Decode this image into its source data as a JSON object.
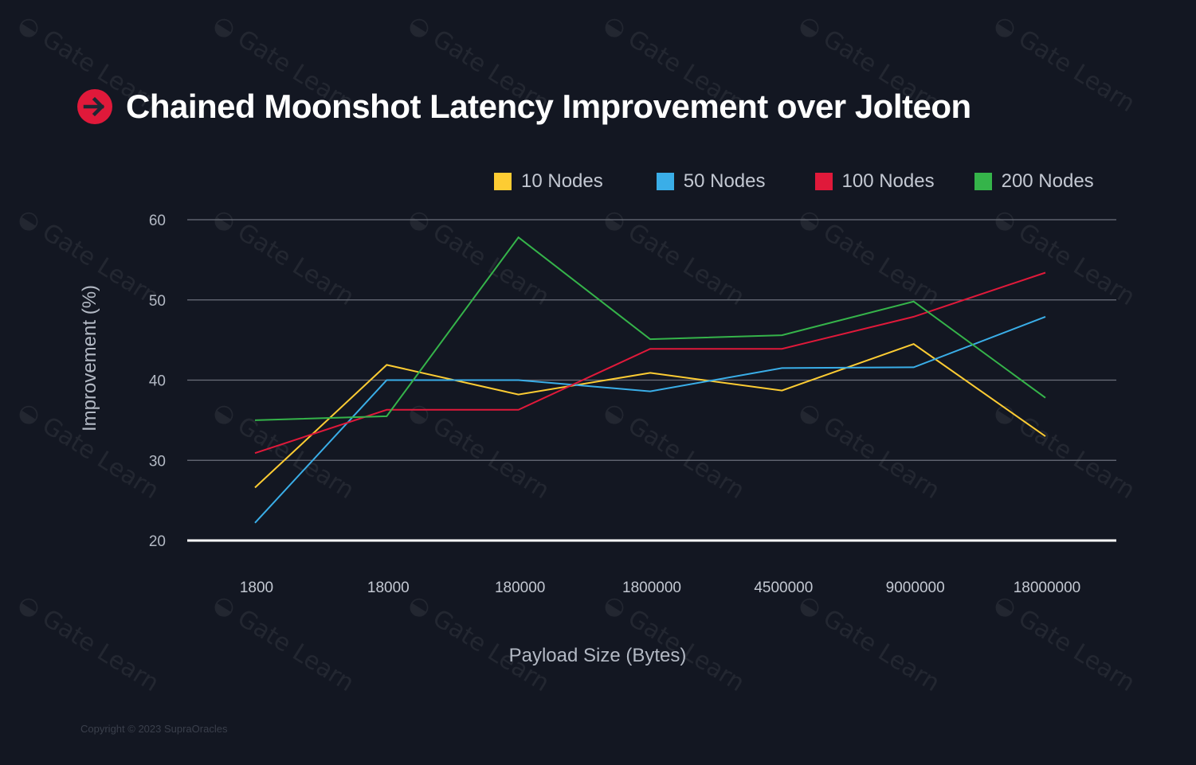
{
  "page": {
    "title": "Chained Moonshot Latency Improvement over Jolteon",
    "copyright": "Copyright © 2023 SupraOracles",
    "watermark_text": "Gate Learn",
    "title_icon": "arrow-right-circle-icon",
    "background": "#131722"
  },
  "chart_data": {
    "type": "line",
    "title": "Chained Moonshot Latency Improvement over Jolteon",
    "xlabel": "Payload Size (Bytes)",
    "ylabel": "Improvement (%)",
    "categories": [
      "1800",
      "18000",
      "180000",
      "1800000",
      "4500000",
      "9000000",
      "18000000"
    ],
    "ylim": [
      20,
      60
    ],
    "yticks": [
      20,
      30,
      40,
      50,
      60
    ],
    "grid": true,
    "legend_position": "top-right",
    "series": [
      {
        "name": "10 Nodes",
        "color": "#fdcc33",
        "values": [
          26.6,
          41.9,
          38.2,
          40.9,
          38.7,
          44.5,
          33.0
        ]
      },
      {
        "name": "50 Nodes",
        "color": "#3aaee8",
        "values": [
          22.2,
          40.0,
          40.0,
          38.6,
          41.5,
          41.6,
          47.9
        ]
      },
      {
        "name": "100 Nodes",
        "color": "#e0193a",
        "values": [
          30.9,
          36.3,
          36.3,
          43.9,
          43.9,
          47.9,
          53.4
        ]
      },
      {
        "name": "200 Nodes",
        "color": "#35b44a",
        "values": [
          35.0,
          35.5,
          57.8,
          45.1,
          45.6,
          49.8,
          37.8
        ]
      }
    ]
  }
}
